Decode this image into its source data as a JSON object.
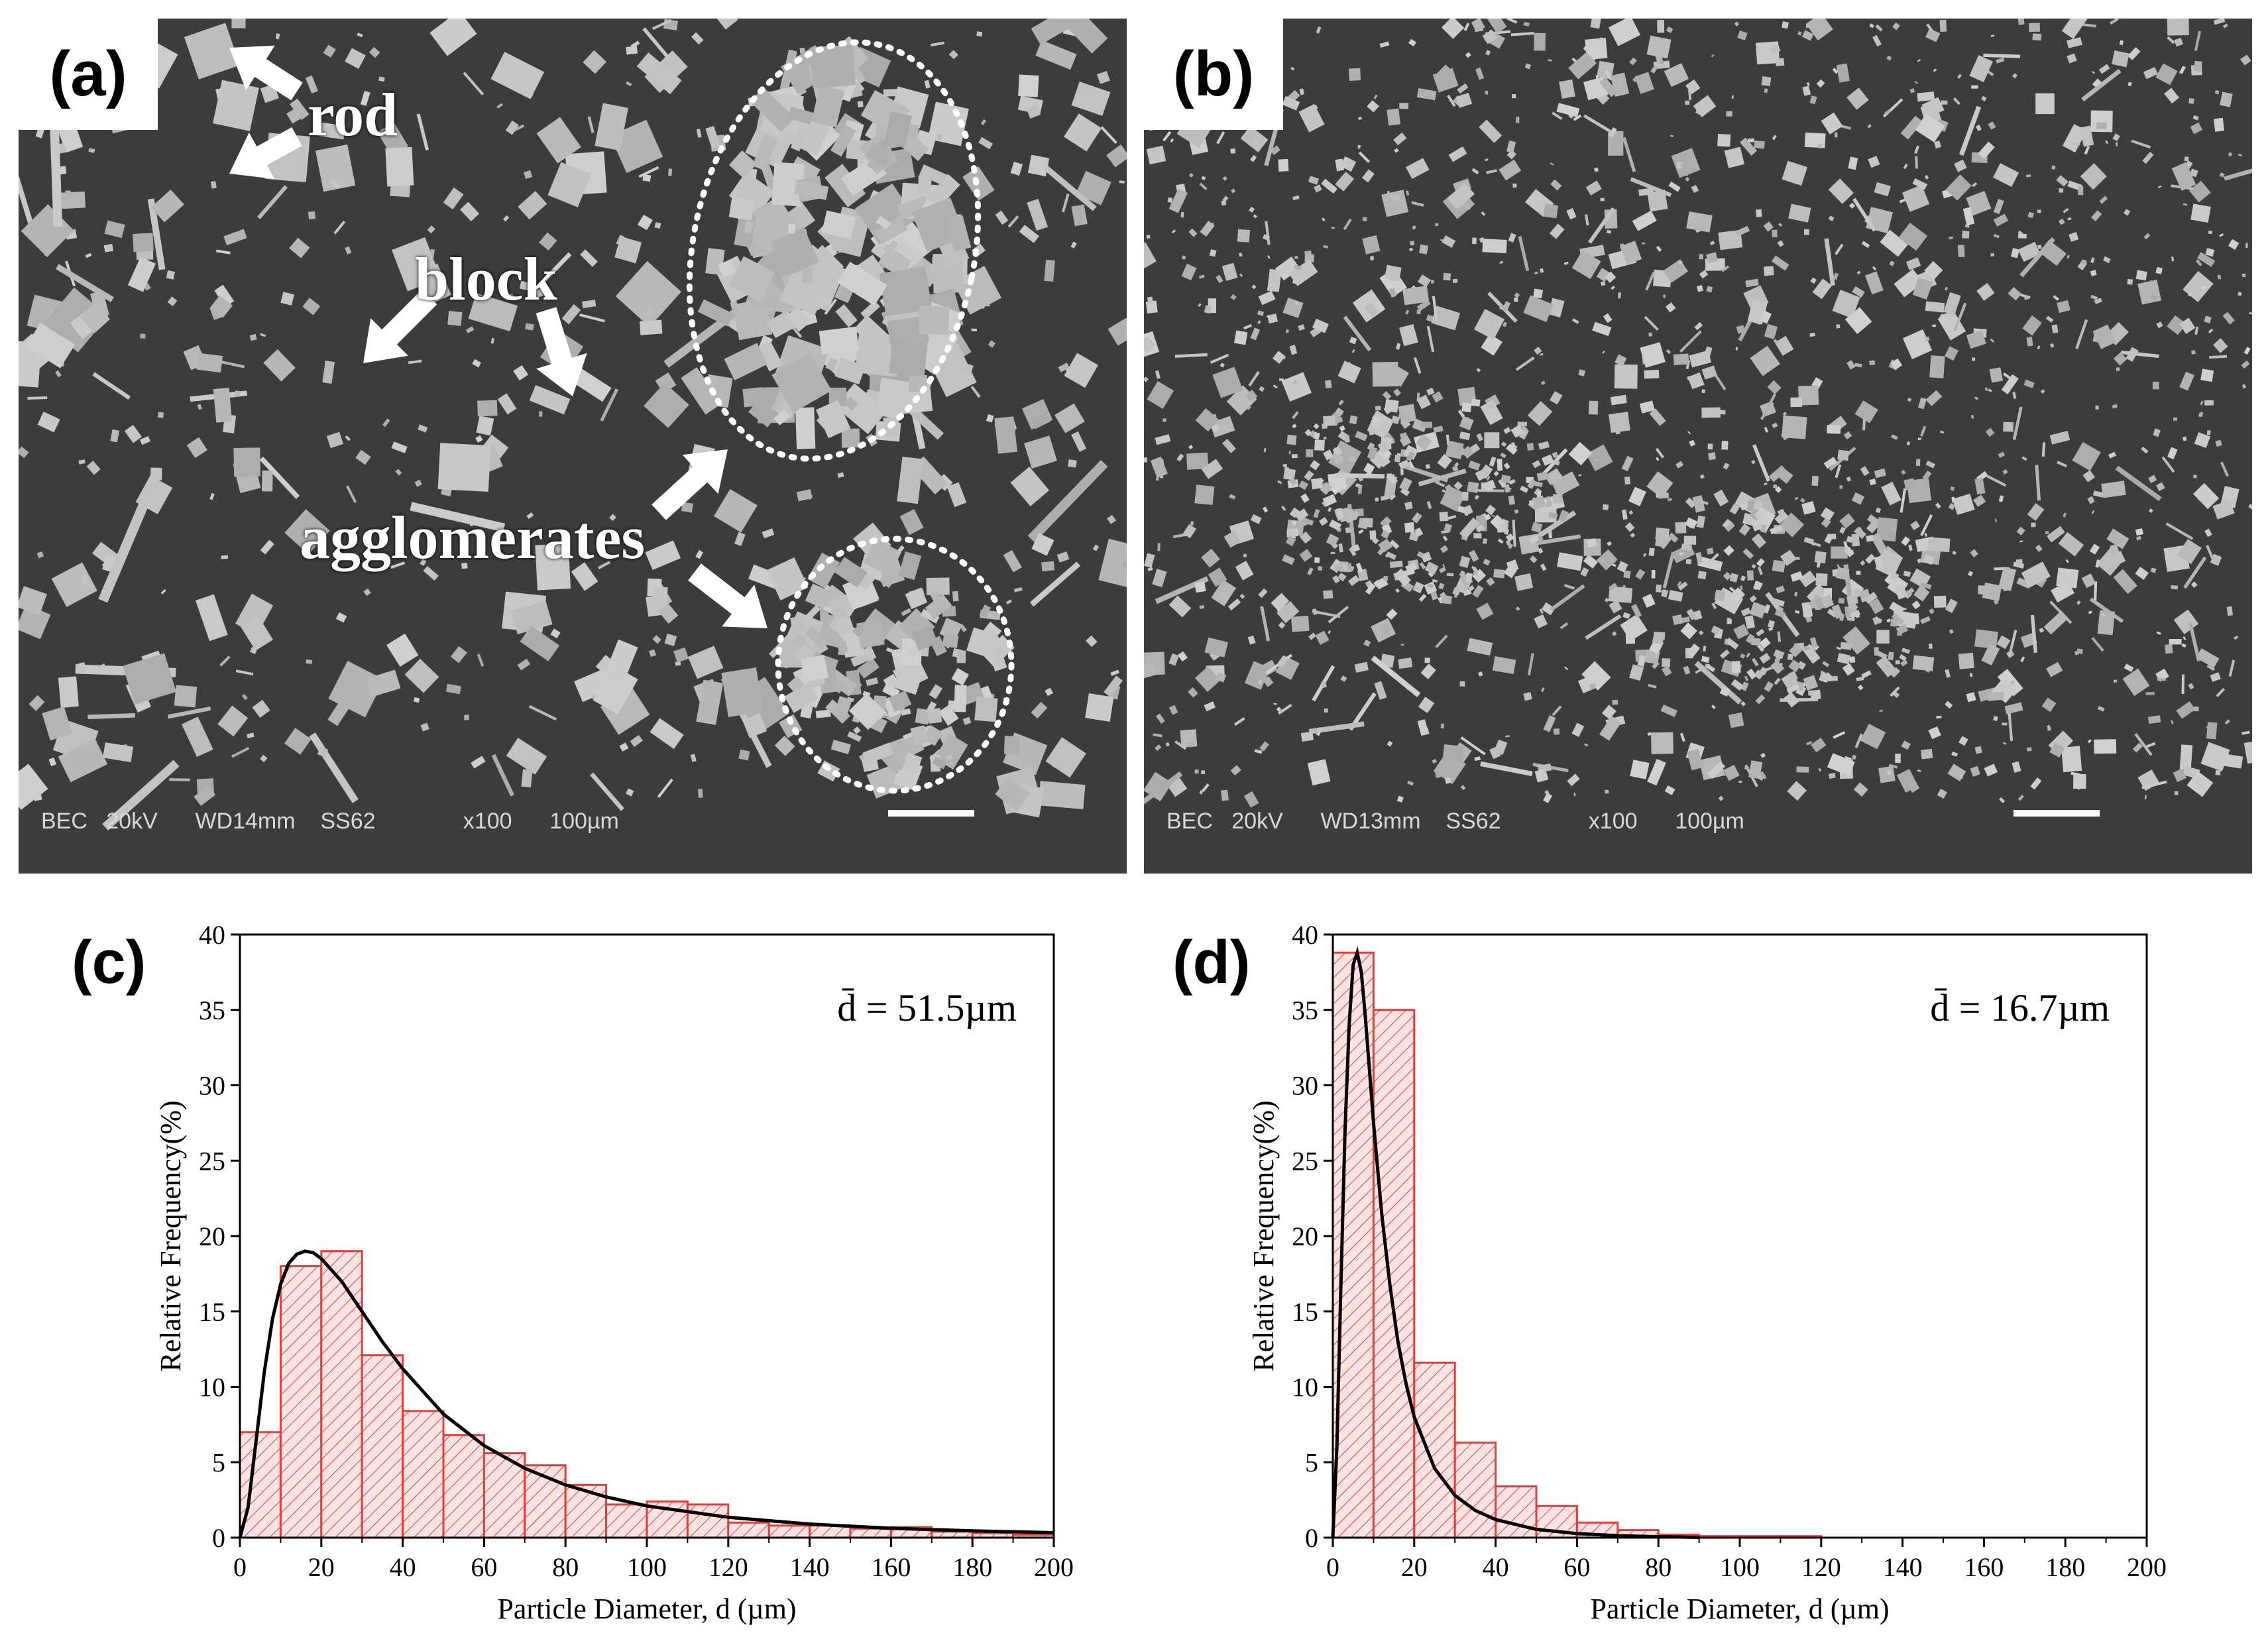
{
  "panels": {
    "a": {
      "letter": "(a)",
      "annotations": {
        "rod": "rod",
        "block": "block",
        "agglomerates": "agglomerates"
      },
      "info": {
        "mode": "BEC",
        "voltage": "20kV",
        "wd": "WD14mm",
        "ss": "SS62",
        "mag": "x100",
        "scale": "100µm"
      }
    },
    "b": {
      "letter": "(b)",
      "info": {
        "mode": "BEC",
        "voltage": "20kV",
        "wd": "WD13mm",
        "ss": "SS62",
        "mag": "x100",
        "scale": "100µm"
      }
    },
    "c": {
      "letter": "(c)"
    },
    "d": {
      "letter": "(d)"
    }
  },
  "colors": {
    "bar_edge": "#e0403c",
    "bar_fill": "#fbe3e3",
    "fit_line": "#000000",
    "sem_bg": "#3c3c3c",
    "particle": "#b8b8b8"
  },
  "chart_data": [
    {
      "panel": "c",
      "type": "bar",
      "subtype": "histogram with fitted distribution curve",
      "xlabel": "Particle Diameter, d (µm)",
      "ylabel": "Relative Frequency(%)",
      "xlim": [
        0,
        200
      ],
      "ylim": [
        0,
        40
      ],
      "xticks": [
        0,
        20,
        40,
        60,
        80,
        100,
        120,
        140,
        160,
        180,
        200
      ],
      "yticks": [
        0,
        5,
        10,
        15,
        20,
        25,
        30,
        35,
        40
      ],
      "annotation": "d̄ = 51.5µm",
      "bin_width": 10,
      "bin_starts": [
        0,
        10,
        20,
        30,
        40,
        50,
        60,
        70,
        80,
        90,
        100,
        110,
        120,
        130,
        140,
        150,
        160,
        170,
        180,
        190
      ],
      "values": [
        7.0,
        18.0,
        19.0,
        12.1,
        8.4,
        6.8,
        5.6,
        4.8,
        3.5,
        2.2,
        2.4,
        2.2,
        1.0,
        0.8,
        0.8,
        0.6,
        0.7,
        0.4,
        0.3,
        0.2
      ],
      "fit_curve": {
        "x": [
          0,
          2,
          4,
          6,
          8,
          10,
          12,
          14,
          16,
          18,
          20,
          25,
          30,
          35,
          40,
          50,
          60,
          70,
          80,
          90,
          100,
          120,
          140,
          160,
          180,
          200
        ],
        "y": [
          0,
          2.0,
          6.5,
          11.0,
          14.5,
          16.8,
          18.2,
          18.8,
          19.0,
          18.9,
          18.5,
          17.0,
          15.0,
          13.0,
          11.2,
          8.2,
          6.1,
          4.6,
          3.5,
          2.7,
          2.1,
          1.35,
          0.9,
          0.62,
          0.45,
          0.33
        ]
      }
    },
    {
      "panel": "d",
      "type": "bar",
      "subtype": "histogram with fitted distribution curve",
      "xlabel": "Particle Diameter, d (µm)",
      "ylabel": "Relative Frequency(%)",
      "xlim": [
        0,
        200
      ],
      "ylim": [
        0,
        40
      ],
      "xticks": [
        0,
        20,
        40,
        60,
        80,
        100,
        120,
        140,
        160,
        180,
        200
      ],
      "yticks": [
        0,
        5,
        10,
        15,
        20,
        25,
        30,
        35,
        40
      ],
      "annotation": "d̄ = 16.7µm",
      "bin_width": 10,
      "bin_starts": [
        0,
        10,
        20,
        30,
        40,
        50,
        60,
        70,
        80,
        90,
        100,
        110
      ],
      "values": [
        38.8,
        35.0,
        11.6,
        6.3,
        3.4,
        2.1,
        1.0,
        0.5,
        0.2,
        0.1,
        0.1,
        0.1
      ],
      "fit_curve": {
        "x": [
          0,
          1,
          2,
          3,
          4,
          5,
          6,
          7,
          8,
          9,
          10,
          12,
          14,
          16,
          18,
          20,
          25,
          30,
          35,
          40,
          50,
          60,
          70,
          80,
          90
        ],
        "y": [
          0,
          6,
          17,
          27,
          34,
          38,
          38.8,
          37.5,
          34.5,
          31,
          27.5,
          21.5,
          16.8,
          13.0,
          10.2,
          8.0,
          4.6,
          2.8,
          1.8,
          1.2,
          0.55,
          0.27,
          0.13,
          0.06,
          0.02
        ]
      }
    }
  ]
}
